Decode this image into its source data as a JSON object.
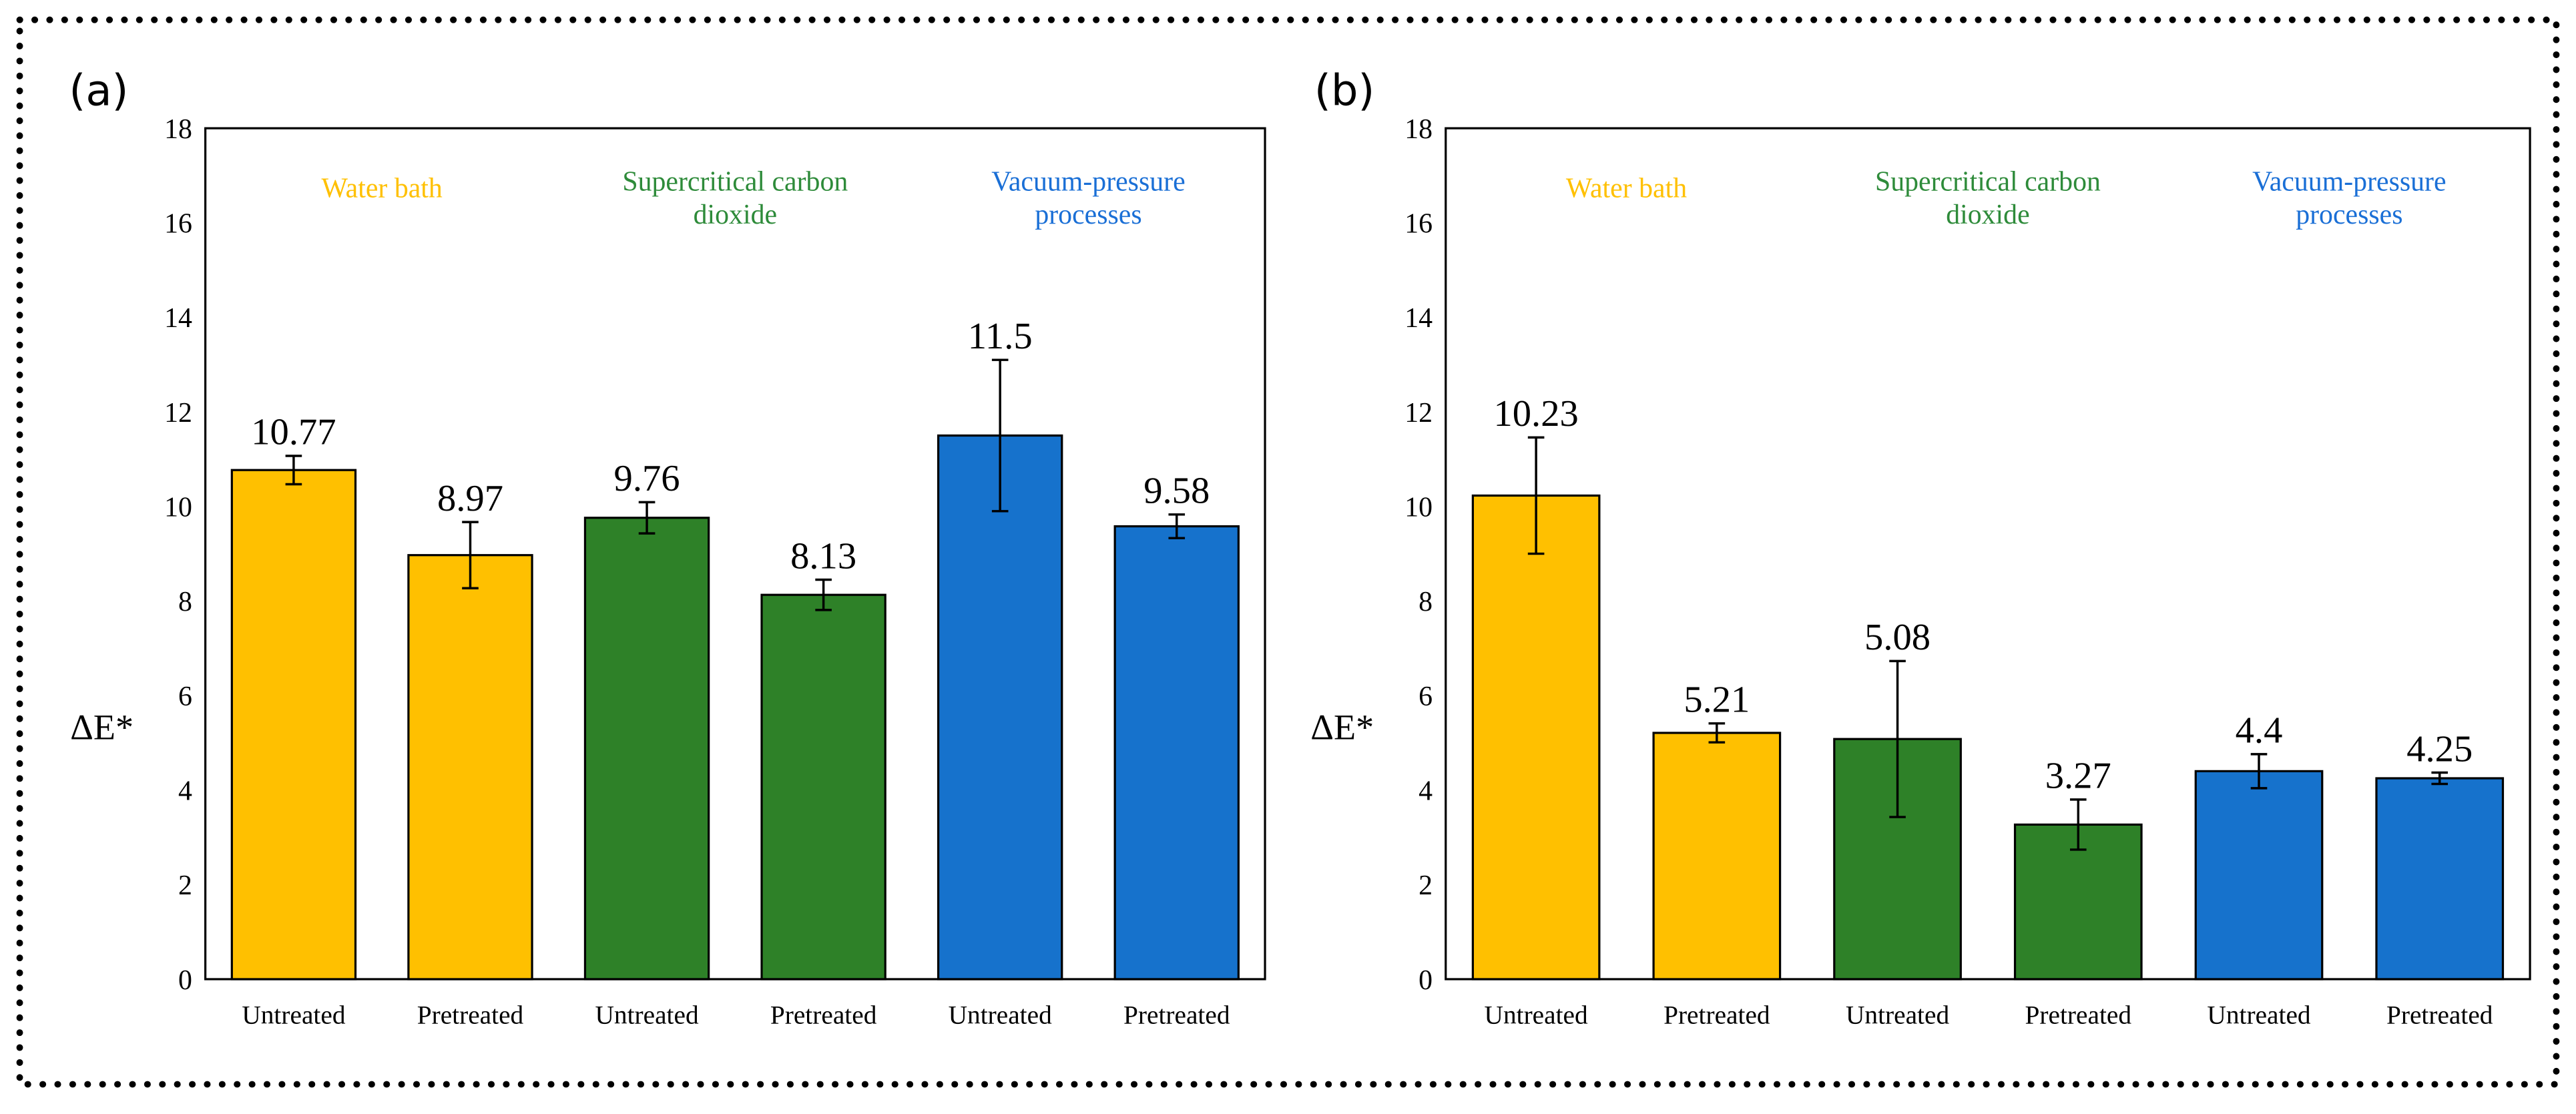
{
  "colors": {
    "water_bath": "#FFC000",
    "supercritical": "#2E8128",
    "vacuum": "#1672CC",
    "water_bath_text": "#FFC000",
    "supercritical_text": "#2E8B3A",
    "vacuum_text": "#1A6FD6"
  },
  "chart_data": [
    {
      "type": "bar",
      "panel_label": "(a)",
      "ylabel": "ΔE*",
      "ylim": [
        0,
        18
      ],
      "yticks": [
        "0",
        "2",
        "4",
        "6",
        "8",
        "10",
        "12",
        "14",
        "16",
        "18"
      ],
      "categories": [
        "Untreated",
        "Pretreated",
        "Untreated",
        "Pretreated",
        "Untreated",
        "Pretreated"
      ],
      "groups": [
        {
          "name_lines": [
            "Water bath"
          ],
          "color_key": "water_bath"
        },
        {
          "name_lines": [
            "Supercritical carbon",
            "dioxide"
          ],
          "color_key": "supercritical"
        },
        {
          "name_lines": [
            "Vacuum-pressure",
            "processes"
          ],
          "color_key": "vacuum"
        }
      ],
      "values": [
        10.77,
        8.97,
        9.76,
        8.13,
        11.5,
        9.58
      ],
      "value_labels": [
        "10.77",
        "8.97",
        "9.76",
        "8.13",
        "11.5",
        "9.58"
      ],
      "errors": [
        0.3,
        0.7,
        0.33,
        0.32,
        1.6,
        0.25
      ]
    },
    {
      "type": "bar",
      "panel_label": "(b)",
      "ylabel": "ΔE*",
      "ylim": [
        0,
        18
      ],
      "yticks": [
        "0",
        "2",
        "4",
        "6",
        "8",
        "10",
        "12",
        "14",
        "16",
        "18"
      ],
      "categories": [
        "Untreated",
        "Pretreated",
        "Untreated",
        "Pretreated",
        "Untreated",
        "Pretreated"
      ],
      "groups": [
        {
          "name_lines": [
            "Water bath"
          ],
          "color_key": "water_bath"
        },
        {
          "name_lines": [
            "Supercritical carbon",
            "dioxide"
          ],
          "color_key": "supercritical"
        },
        {
          "name_lines": [
            "Vacuum-pressure",
            "processes"
          ],
          "color_key": "vacuum"
        }
      ],
      "values": [
        10.23,
        5.21,
        5.08,
        3.27,
        4.4,
        4.25
      ],
      "value_labels": [
        "10.23",
        "5.21",
        "5.08",
        "3.27",
        "4.4",
        "4.25"
      ],
      "errors": [
        1.23,
        0.2,
        1.65,
        0.53,
        0.36,
        0.12
      ]
    }
  ]
}
